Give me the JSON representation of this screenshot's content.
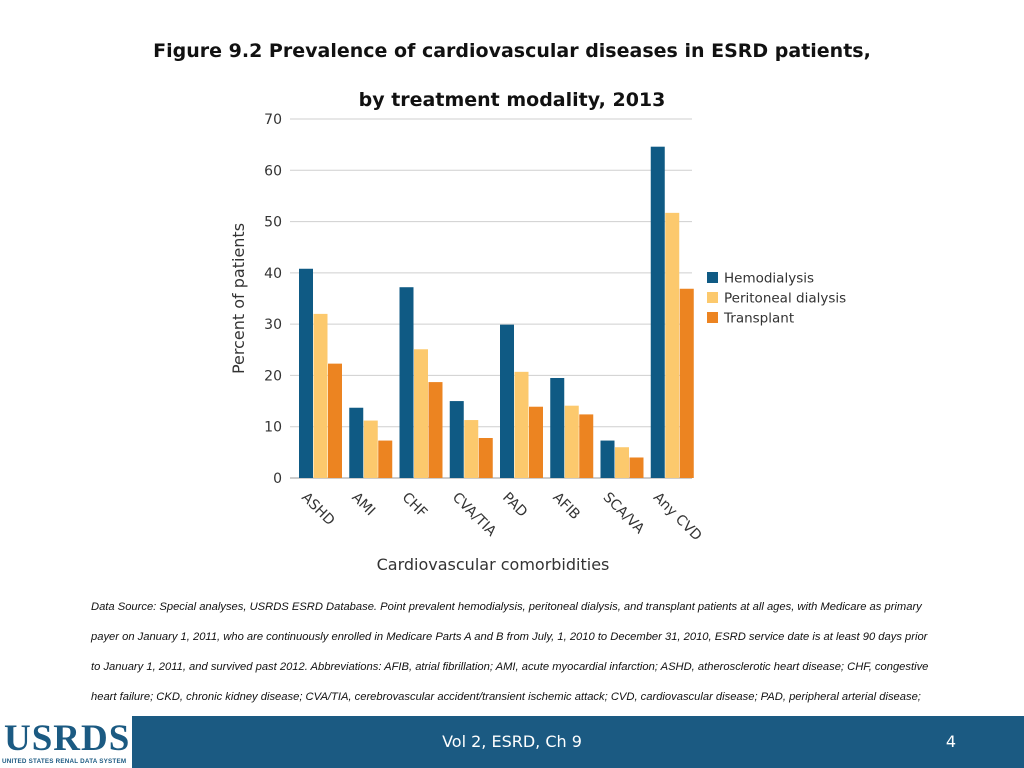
{
  "slide": {
    "title_line1": "Figure 9.2 Prevalence of cardiovascular diseases in ESRD patients,",
    "title_line2": "by treatment modality, 2013",
    "source_text": "Data Source: Special analyses, USRDS ESRD Database. Point prevalent hemodialysis, peritoneal dialysis, and transplant patients at all ages, with Medicare as primary payer on January 1, 2011, who are continuously enrolled in Medicare Parts A and B from July, 1, 2010 to December 31, 2010, ESRD service date is at least 90 days prior to January 1, 2011, and survived past 2012. Abbreviations: AFIB, atrial fibrillation; AMI, acute myocardial infarction; ASHD, atherosclerotic heart disease; CHF, congestive heart failure; CKD, chronic kidney disease; CVA/TIA, cerebrovascular accident/transient ischemic attack; CVD, cardiovascular disease; PAD, peripheral arterial disease; SCA/VA, sudden cardiac arrest and ventricular arrhythmias."
  },
  "footer": {
    "logo_text": "USRDS",
    "logo_subtext": "UNITED STATES RENAL DATA SYSTEM",
    "center_text": "Vol 2, ESRD, Ch 9",
    "page_number": "4",
    "bar_color": "#1b5a82"
  },
  "chart_data": {
    "type": "bar",
    "xlabel": "Cardiovascular comorbidities",
    "ylabel": "Percent of patients",
    "ylim": [
      0,
      70
    ],
    "yticks": [
      0,
      10,
      20,
      30,
      40,
      50,
      60,
      70
    ],
    "grid": true,
    "legend_position": "right",
    "categories": [
      "ASHD",
      "AMI",
      "CHF",
      "CVA/TIA",
      "PAD",
      "AFIB",
      "SCA/VA",
      "Any CVD"
    ],
    "series": [
      {
        "name": "Hemodialysis",
        "color": "#0f5a84",
        "values": [
          40.8,
          13.7,
          37.2,
          15.0,
          29.9,
          19.5,
          7.3,
          64.6
        ]
      },
      {
        "name": "Peritoneal dialysis",
        "color": "#fcc96d",
        "values": [
          32.0,
          11.2,
          25.1,
          11.3,
          20.7,
          14.1,
          6.0,
          51.7
        ]
      },
      {
        "name": "Transplant",
        "color": "#ec8421",
        "values": [
          22.3,
          7.3,
          18.7,
          7.8,
          13.9,
          12.4,
          4.0,
          36.9
        ]
      }
    ]
  }
}
